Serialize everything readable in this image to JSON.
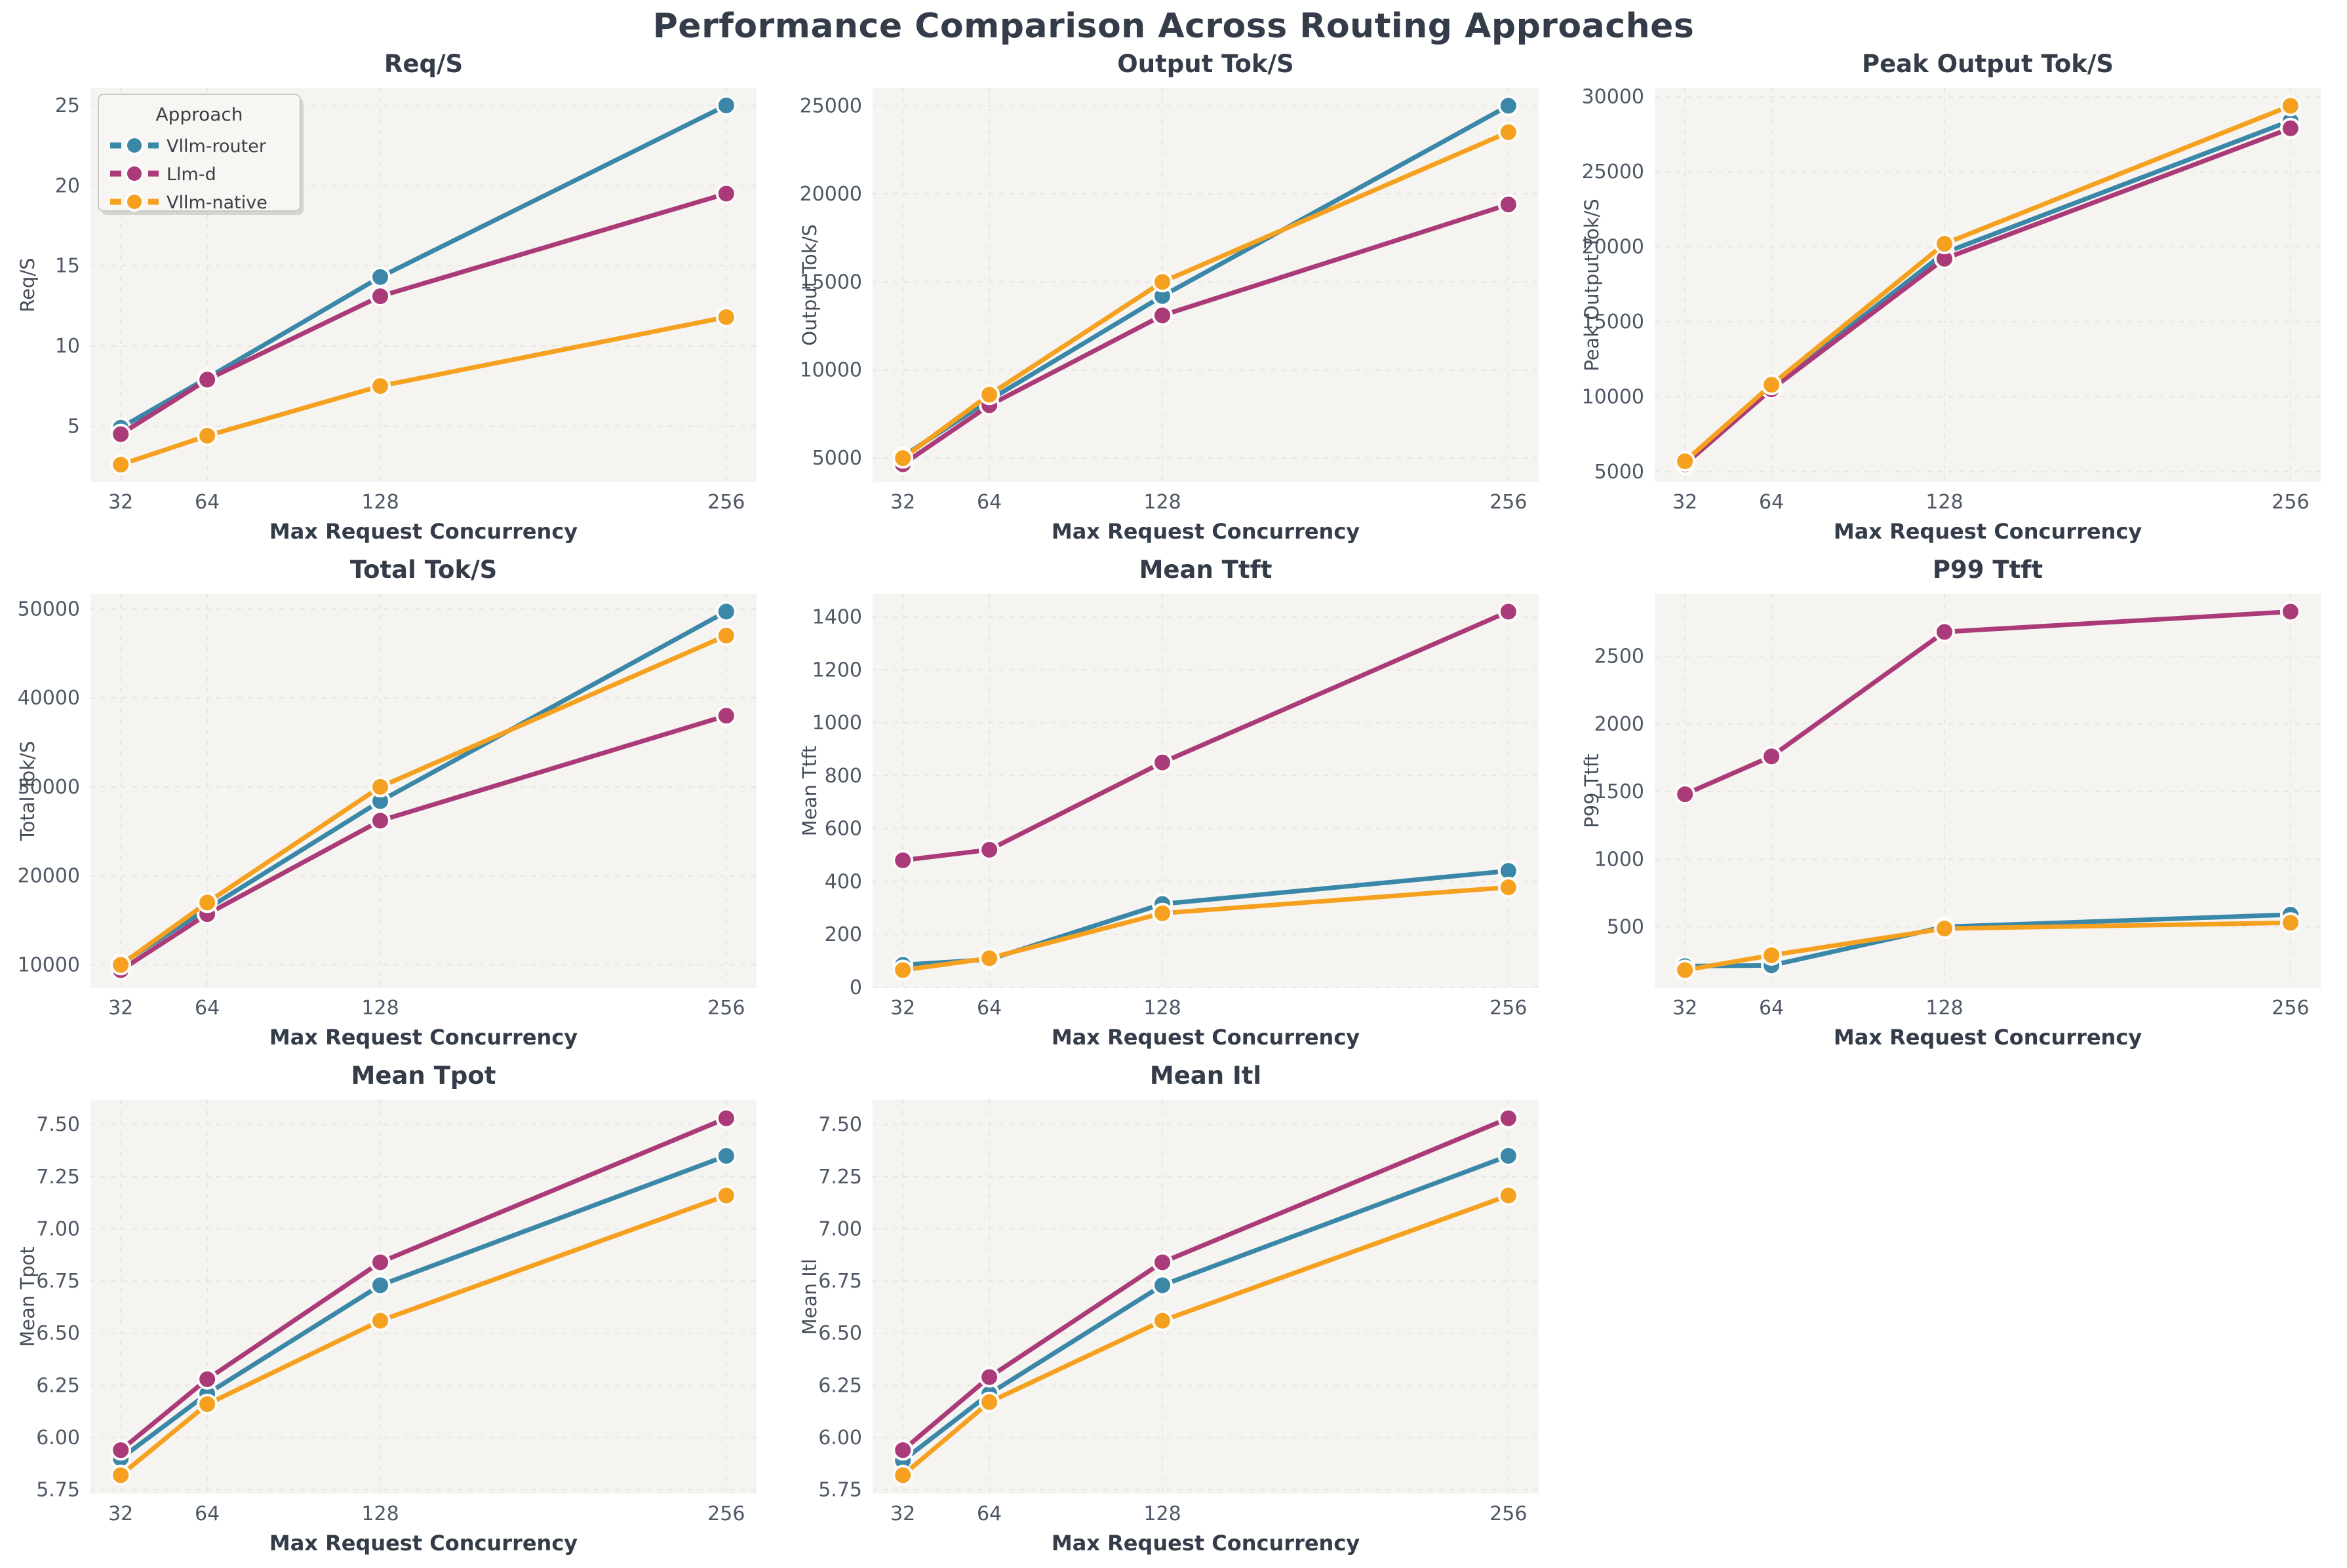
{
  "page_title": "Performance Comparison Across Routing Approaches",
  "colors": {
    "vllm_router": "#3a87a8",
    "llm_d": "#ab3a78",
    "vllm_native": "#f5a11f",
    "plot_bg": "#f5f4f1",
    "grid": "#e8e6e2",
    "title_text": "#333c48",
    "tick_text": "#4e5865",
    "label_text": "#454e59"
  },
  "legend": {
    "title": "Approach",
    "entries": [
      {
        "label": "Vllm-router",
        "color": "#3a87a8"
      },
      {
        "label": "Llm-d",
        "color": "#ab3a78"
      },
      {
        "label": "Vllm-native",
        "color": "#f5a11f"
      }
    ]
  },
  "chart_data": [
    {
      "type": "line",
      "title": "Req/S",
      "xlabel": "Max Request Concurrency",
      "ylabel": "Req/S",
      "x": [
        32,
        64,
        128,
        256
      ],
      "xticks": [
        32,
        64,
        128,
        256
      ],
      "yticks": [
        5,
        10,
        15,
        20,
        25
      ],
      "ylim": [
        1.5,
        26.1
      ],
      "tick_decimals": 0,
      "legend_visible": true,
      "grid": true,
      "series": [
        {
          "name": "Vllm-router",
          "color": "#3a87a8",
          "values": [
            4.9,
            8.0,
            14.3,
            25.0
          ]
        },
        {
          "name": "Llm-d",
          "color": "#ab3a78",
          "values": [
            4.5,
            7.9,
            13.1,
            19.5
          ]
        },
        {
          "name": "Vllm-native",
          "color": "#f5a11f",
          "values": [
            2.6,
            4.4,
            7.5,
            11.8
          ]
        }
      ]
    },
    {
      "type": "line",
      "title": "Output Tok/S",
      "xlabel": "Max Request Concurrency",
      "ylabel": "Output Tok/S",
      "x": [
        32,
        64,
        128,
        256
      ],
      "xticks": [
        32,
        64,
        128,
        256
      ],
      "yticks": [
        5000,
        10000,
        15000,
        20000,
        25000
      ],
      "ylim": [
        3630,
        26020
      ],
      "tick_decimals": 0,
      "legend_visible": false,
      "grid": true,
      "series": [
        {
          "name": "Vllm-router",
          "color": "#3a87a8",
          "values": [
            5100,
            8300,
            14200,
            25000
          ]
        },
        {
          "name": "Llm-d",
          "color": "#ab3a78",
          "values": [
            4650,
            8000,
            13100,
            19400
          ]
        },
        {
          "name": "Vllm-native",
          "color": "#f5a11f",
          "values": [
            5000,
            8600,
            15000,
            23500
          ]
        }
      ]
    },
    {
      "type": "line",
      "title": "Peak Output Tok/S",
      "xlabel": "Max Request Concurrency",
      "ylabel": "Peak Output Tok/S",
      "x": [
        32,
        64,
        128,
        256
      ],
      "xticks": [
        32,
        64,
        128,
        256
      ],
      "yticks": [
        5000,
        10000,
        15000,
        20000,
        25000,
        30000
      ],
      "ylim": [
        4300,
        30600
      ],
      "tick_decimals": 0,
      "legend_visible": false,
      "grid": true,
      "series": [
        {
          "name": "Vllm-router",
          "color": "#3a87a8",
          "values": [
            5600,
            10600,
            19600,
            28400
          ]
        },
        {
          "name": "Llm-d",
          "color": "#ab3a78",
          "values": [
            5500,
            10500,
            19200,
            27900
          ]
        },
        {
          "name": "Vllm-native",
          "color": "#f5a11f",
          "values": [
            5700,
            10800,
            20200,
            29400
          ]
        }
      ]
    },
    {
      "type": "line",
      "title": "Total Tok/S",
      "xlabel": "Max Request Concurrency",
      "ylabel": "Total Tok/S",
      "x": [
        32,
        64,
        128,
        256
      ],
      "xticks": [
        32,
        64,
        128,
        256
      ],
      "yticks": [
        10000,
        20000,
        30000,
        40000,
        50000
      ],
      "ylim": [
        7385,
        51715
      ],
      "tick_decimals": 0,
      "legend_visible": false,
      "grid": true,
      "series": [
        {
          "name": "Vllm-router",
          "color": "#3a87a8",
          "values": [
            10100,
            16300,
            28400,
            49700
          ]
        },
        {
          "name": "Llm-d",
          "color": "#ab3a78",
          "values": [
            9400,
            15700,
            26200,
            38000
          ]
        },
        {
          "name": "Vllm-native",
          "color": "#f5a11f",
          "values": [
            10000,
            17000,
            30000,
            47000
          ]
        }
      ]
    },
    {
      "type": "line",
      "title": "Mean Ttft",
      "xlabel": "Max Request Concurrency",
      "ylabel": "Mean Ttft",
      "x": [
        32,
        64,
        128,
        256
      ],
      "xticks": [
        32,
        64,
        128,
        256
      ],
      "yticks": [
        0,
        200,
        400,
        600,
        800,
        1000,
        1200,
        1400
      ],
      "ylim": [
        -3,
        1488
      ],
      "tick_decimals": 0,
      "legend_visible": false,
      "grid": true,
      "series": [
        {
          "name": "Vllm-router",
          "color": "#3a87a8",
          "values": [
            85,
            105,
            315,
            440
          ]
        },
        {
          "name": "Llm-d",
          "color": "#ab3a78",
          "values": [
            480,
            520,
            850,
            1420
          ]
        },
        {
          "name": "Vllm-native",
          "color": "#f5a11f",
          "values": [
            65,
            110,
            280,
            378
          ]
        }
      ]
    },
    {
      "type": "line",
      "title": "P99 Ttft",
      "xlabel": "Max Request Concurrency",
      "ylabel": "P99 Ttft",
      "x": [
        32,
        64,
        128,
        256
      ],
      "xticks": [
        32,
        64,
        128,
        256
      ],
      "yticks": [
        500,
        1000,
        1500,
        2000,
        2500
      ],
      "ylim": [
        47,
        2963
      ],
      "tick_decimals": 0,
      "legend_visible": false,
      "grid": true,
      "series": [
        {
          "name": "Vllm-router",
          "color": "#3a87a8",
          "values": [
            210,
            215,
            500,
            590
          ]
        },
        {
          "name": "Llm-d",
          "color": "#ab3a78",
          "values": [
            1480,
            1760,
            2680,
            2830
          ]
        },
        {
          "name": "Vllm-native",
          "color": "#f5a11f",
          "values": [
            180,
            290,
            487,
            530
          ]
        }
      ]
    },
    {
      "type": "line",
      "title": "Mean Tpot",
      "xlabel": "Max Request Concurrency",
      "ylabel": "Mean Tpot",
      "x": [
        32,
        64,
        128,
        256
      ],
      "xticks": [
        32,
        64,
        128,
        256
      ],
      "yticks": [
        5.75,
        6.0,
        6.25,
        6.5,
        6.75,
        7.0,
        7.25,
        7.5
      ],
      "ylim": [
        5.73,
        7.62
      ],
      "tick_decimals": 2,
      "legend_visible": false,
      "grid": true,
      "series": [
        {
          "name": "Vllm-router",
          "color": "#3a87a8",
          "values": [
            5.9,
            6.21,
            6.73,
            7.35
          ]
        },
        {
          "name": "Llm-d",
          "color": "#ab3a78",
          "values": [
            5.94,
            6.28,
            6.84,
            7.53
          ]
        },
        {
          "name": "Vllm-native",
          "color": "#f5a11f",
          "values": [
            5.82,
            6.16,
            6.56,
            7.16
          ]
        }
      ]
    },
    {
      "type": "line",
      "title": "Mean Itl",
      "xlabel": "Max Request Concurrency",
      "ylabel": "Mean Itl",
      "x": [
        32,
        64,
        128,
        256
      ],
      "xticks": [
        32,
        64,
        128,
        256
      ],
      "yticks": [
        5.75,
        6.0,
        6.25,
        6.5,
        6.75,
        7.0,
        7.25,
        7.5
      ],
      "ylim": [
        5.73,
        7.62
      ],
      "tick_decimals": 2,
      "legend_visible": false,
      "grid": true,
      "series": [
        {
          "name": "Vllm-router",
          "color": "#3a87a8",
          "values": [
            5.89,
            6.21,
            6.73,
            7.35
          ]
        },
        {
          "name": "Llm-d",
          "color": "#ab3a78",
          "values": [
            5.94,
            6.29,
            6.84,
            7.53
          ]
        },
        {
          "name": "Vllm-native",
          "color": "#f5a11f",
          "values": [
            5.82,
            6.17,
            6.56,
            7.16
          ]
        }
      ]
    }
  ]
}
